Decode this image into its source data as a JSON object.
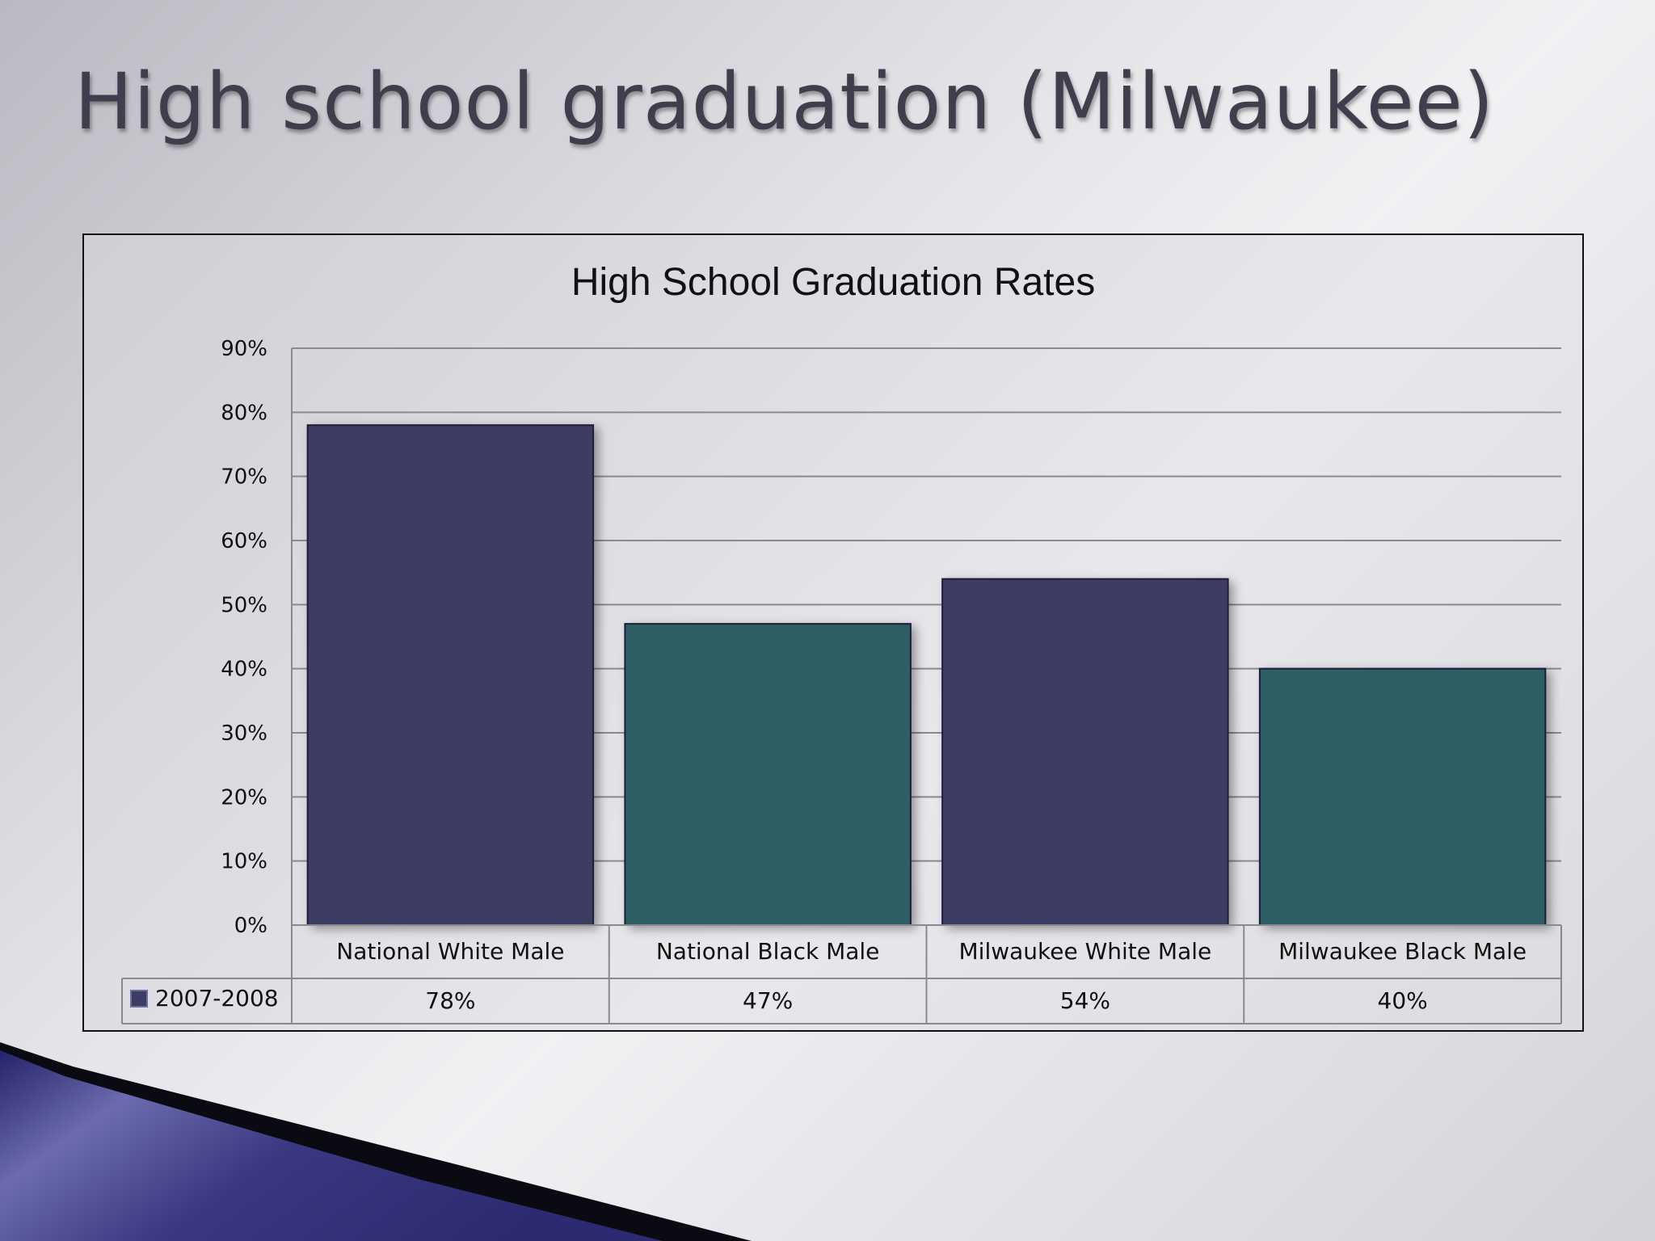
{
  "slide": {
    "title": "High school graduation (Milwaukee)"
  },
  "colors": {
    "white_male": "#3d3c64",
    "black_male": "#2e6064",
    "grid": "#8a8a8e",
    "text": "#111111"
  },
  "chart_data": {
    "type": "bar",
    "title": "High School Graduation Rates",
    "categories": [
      "National White Male",
      "National Black Male",
      "Milwaukee White Male",
      "Milwaukee Black Male"
    ],
    "series": [
      {
        "name": "2007-2008",
        "values": [
          78,
          47,
          54,
          40
        ]
      }
    ],
    "data_table": [
      "78%",
      "47%",
      "54%",
      "40%"
    ],
    "bar_colors": [
      "#3d3c64",
      "#2e6064",
      "#3d3c64",
      "#2e6064"
    ],
    "yticks": [
      "0%",
      "10%",
      "20%",
      "30%",
      "40%",
      "50%",
      "60%",
      "70%",
      "80%",
      "90%"
    ],
    "ylim": [
      0,
      90
    ],
    "grid": true,
    "legend": "data-table"
  }
}
